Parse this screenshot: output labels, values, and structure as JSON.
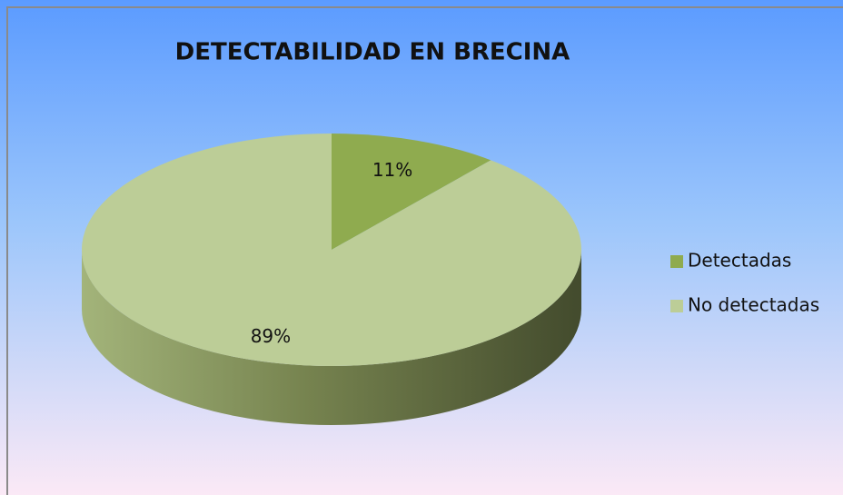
{
  "chart_data": {
    "type": "pie",
    "title": "DETECTABILIDAD EN BRECINA",
    "categories": [
      "Detectadas",
      "No detectadas"
    ],
    "values": [
      11,
      89
    ],
    "value_labels": [
      "11%",
      "89%"
    ],
    "colors": [
      "#8fab4f",
      "#bccd97"
    ],
    "legend": "right"
  }
}
